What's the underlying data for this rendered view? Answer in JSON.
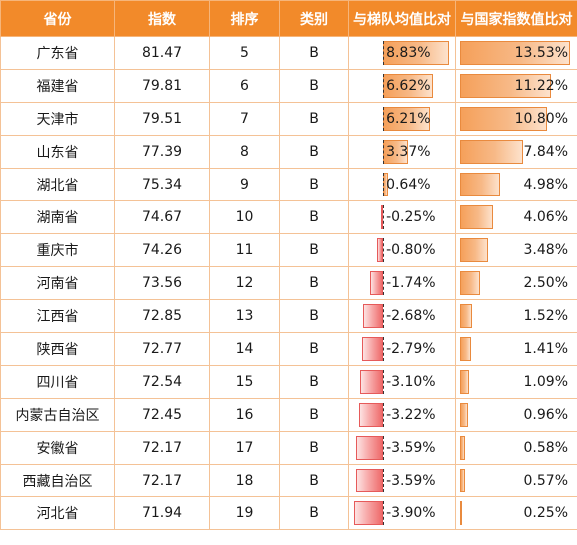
{
  "headers": [
    "省份",
    "指数",
    "排序",
    "类别",
    "与梯队均值比对",
    "与国家指数值比对"
  ],
  "rows": [
    {
      "province": "广东省",
      "index": "81.47",
      "rank": "5",
      "category": "B",
      "vs_tier": "8.83%",
      "vs_tier_value": 8.83,
      "vs_nation": "13.53%",
      "vs_nation_value": 13.53
    },
    {
      "province": "福建省",
      "index": "79.81",
      "rank": "6",
      "category": "B",
      "vs_tier": "6.62%",
      "vs_tier_value": 6.62,
      "vs_nation": "11.22%",
      "vs_nation_value": 11.22
    },
    {
      "province": "天津市",
      "index": "79.51",
      "rank": "7",
      "category": "B",
      "vs_tier": "6.21%",
      "vs_tier_value": 6.21,
      "vs_nation": "10.80%",
      "vs_nation_value": 10.8
    },
    {
      "province": "山东省",
      "index": "77.39",
      "rank": "8",
      "category": "B",
      "vs_tier": "3.37%",
      "vs_tier_value": 3.37,
      "vs_nation": "7.84%",
      "vs_nation_value": 7.84
    },
    {
      "province": "湖北省",
      "index": "75.34",
      "rank": "9",
      "category": "B",
      "vs_tier": "0.64%",
      "vs_tier_value": 0.64,
      "vs_nation": "4.98%",
      "vs_nation_value": 4.98
    },
    {
      "province": "湖南省",
      "index": "74.67",
      "rank": "10",
      "category": "B",
      "vs_tier": "-0.25%",
      "vs_tier_value": -0.25,
      "vs_nation": "4.06%",
      "vs_nation_value": 4.06
    },
    {
      "province": "重庆市",
      "index": "74.26",
      "rank": "11",
      "category": "B",
      "vs_tier": "-0.80%",
      "vs_tier_value": -0.8,
      "vs_nation": "3.48%",
      "vs_nation_value": 3.48
    },
    {
      "province": "河南省",
      "index": "73.56",
      "rank": "12",
      "category": "B",
      "vs_tier": "-1.74%",
      "vs_tier_value": -1.74,
      "vs_nation": "2.50%",
      "vs_nation_value": 2.5
    },
    {
      "province": "江西省",
      "index": "72.85",
      "rank": "13",
      "category": "B",
      "vs_tier": "-2.68%",
      "vs_tier_value": -2.68,
      "vs_nation": "1.52%",
      "vs_nation_value": 1.52
    },
    {
      "province": "陕西省",
      "index": "72.77",
      "rank": "14",
      "category": "B",
      "vs_tier": "-2.79%",
      "vs_tier_value": -2.79,
      "vs_nation": "1.41%",
      "vs_nation_value": 1.41
    },
    {
      "province": "四川省",
      "index": "72.54",
      "rank": "15",
      "category": "B",
      "vs_tier": "-3.10%",
      "vs_tier_value": -3.1,
      "vs_nation": "1.09%",
      "vs_nation_value": 1.09
    },
    {
      "province": "内蒙古自治区",
      "index": "72.45",
      "rank": "16",
      "category": "B",
      "vs_tier": "-3.22%",
      "vs_tier_value": -3.22,
      "vs_nation": "0.96%",
      "vs_nation_value": 0.96
    },
    {
      "province": "安徽省",
      "index": "72.17",
      "rank": "17",
      "category": "B",
      "vs_tier": "-3.59%",
      "vs_tier_value": -3.59,
      "vs_nation": "0.58%",
      "vs_nation_value": 0.58
    },
    {
      "province": "西藏自治区",
      "index": "72.17",
      "rank": "18",
      "category": "B",
      "vs_tier": "-3.59%",
      "vs_tier_value": -3.59,
      "vs_nation": "0.57%",
      "vs_nation_value": 0.57
    },
    {
      "province": "河北省",
      "index": "71.94",
      "rank": "19",
      "category": "B",
      "vs_tier": "-3.90%",
      "vs_tier_value": -3.9,
      "vs_nation": "0.25%",
      "vs_nation_value": 0.25
    }
  ],
  "colors": {
    "header_bg": "#f28a2a",
    "positive_bar": "#f5a05a",
    "negative_bar": "#ee6a6a",
    "border": "#f4c296"
  }
}
